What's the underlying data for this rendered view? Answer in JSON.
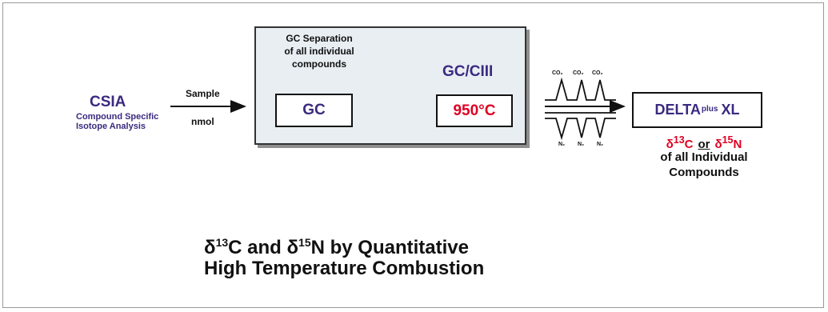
{
  "csia": {
    "title": "CSIA",
    "subtitle_line1": "Compound Specific",
    "subtitle_line2": "Isotope Analysis"
  },
  "transfer": {
    "top": "Sample",
    "bottom": "nmol"
  },
  "gc_panel": {
    "note_line1": "GC Separation",
    "note_line2": "of all individual",
    "note_line3": "compounds",
    "gc_label": "GC",
    "reactor_title": "GC/CIII",
    "reactor_temp": "950°C"
  },
  "gas_labels": {
    "co2": "CO₂",
    "n2": "N₂"
  },
  "instrument": {
    "name": "DELTA",
    "sup": "plus",
    "suffix": "XL"
  },
  "result": {
    "d13c": "δ",
    "c_sup": "13",
    "c_el": "C",
    "or": "or",
    "d15n": "δ",
    "n_sup": "15",
    "n_el": "N",
    "line2": "of all Individual",
    "line3": "Compounds"
  },
  "headline": {
    "line1_pre": "δ",
    "line1_sup1": "13",
    "line1_mid": "C and δ",
    "line1_sup2": "15",
    "line1_post": "N by Quantitative",
    "line2": "High Temperature Combustion"
  },
  "colors": {
    "purple": "#3b2a80",
    "red": "#e00022",
    "panel": "#e8eef2"
  }
}
